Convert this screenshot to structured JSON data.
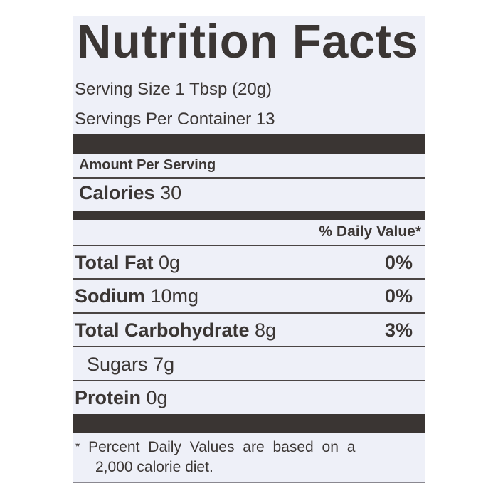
{
  "title": "Nutrition Facts",
  "serving_size": "Serving Size 1 Tbsp (20g)",
  "servings_per_container": "Servings Per Container 13",
  "amount_per_serving": "Amount Per Serving",
  "calories": {
    "label": "Calories",
    "value": "30"
  },
  "daily_value_header": "% Daily Value*",
  "nutrients": [
    {
      "label": "Total Fat",
      "amount": "0g",
      "dv": "0%"
    },
    {
      "label": "Sodium",
      "amount": "10mg",
      "dv": "0%"
    },
    {
      "label": "Total Carbohydrate",
      "amount": "8g",
      "dv": "3%"
    },
    {
      "label": "Sugars",
      "amount": "7g",
      "dv": ""
    },
    {
      "label": "Protein",
      "amount": "0g",
      "dv": ""
    }
  ],
  "footnote_star": "*",
  "footnote_line1": "Percent Daily Values are based on a",
  "footnote_line2": "2,000 calorie diet.",
  "colors": {
    "panel": "#eef0f8",
    "ink": "#3b3634"
  }
}
